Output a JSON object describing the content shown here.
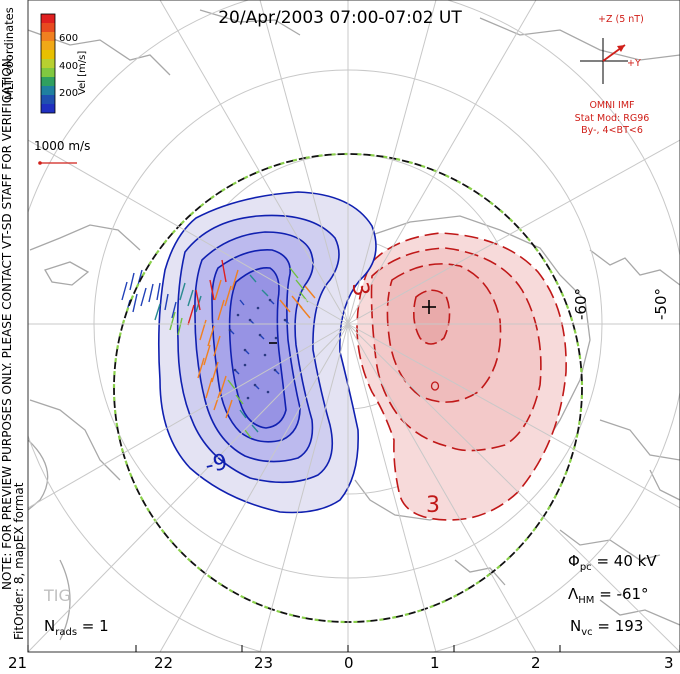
{
  "header": {
    "title": "20/Apr/2003 07:00-07:02 UT"
  },
  "side_notes": {
    "coords": "MLT coordinates",
    "note": "NOTE: FOR PREVIEW PURPOSES ONLY. PLEASE CONTACT VT-SD STAFF FOR VERIFICATION.",
    "fit": "FitOrder: 8, mapEX format"
  },
  "colorbar": {
    "label": "Vel [m/s]",
    "ticks": [
      "600",
      "400",
      "200"
    ],
    "colors": [
      "#2030c0",
      "#2080a0",
      "#30a060",
      "#80c840",
      "#e8c000",
      "#f08020",
      "#e02020"
    ]
  },
  "vector_scale": {
    "label": "1000 m/s",
    "color": "#d0201a"
  },
  "imf": {
    "z_label": "+Z (5 nT)",
    "y_label": "+Y",
    "source": "OMNI IMF",
    "model": "Stat Mod: RG96",
    "condition": "By-, 4<BT<6"
  },
  "contours": {
    "negative_labels": [
      "-9"
    ],
    "positive_labels": [
      "3",
      "3"
    ],
    "min_marker": "-",
    "max_marker": "+",
    "negative_color": "#1020b0",
    "positive_color": "#c01818"
  },
  "latitude_labels": [
    "-60°",
    "-50°"
  ],
  "mlt_labels": [
    "21",
    "22",
    "23",
    "0",
    "1",
    "2",
    "3"
  ],
  "station": "TIG",
  "stats": {
    "nrads": "1",
    "phi_pc": "40 kV",
    "lambda_hm": "-61°",
    "nvc": "193"
  }
}
